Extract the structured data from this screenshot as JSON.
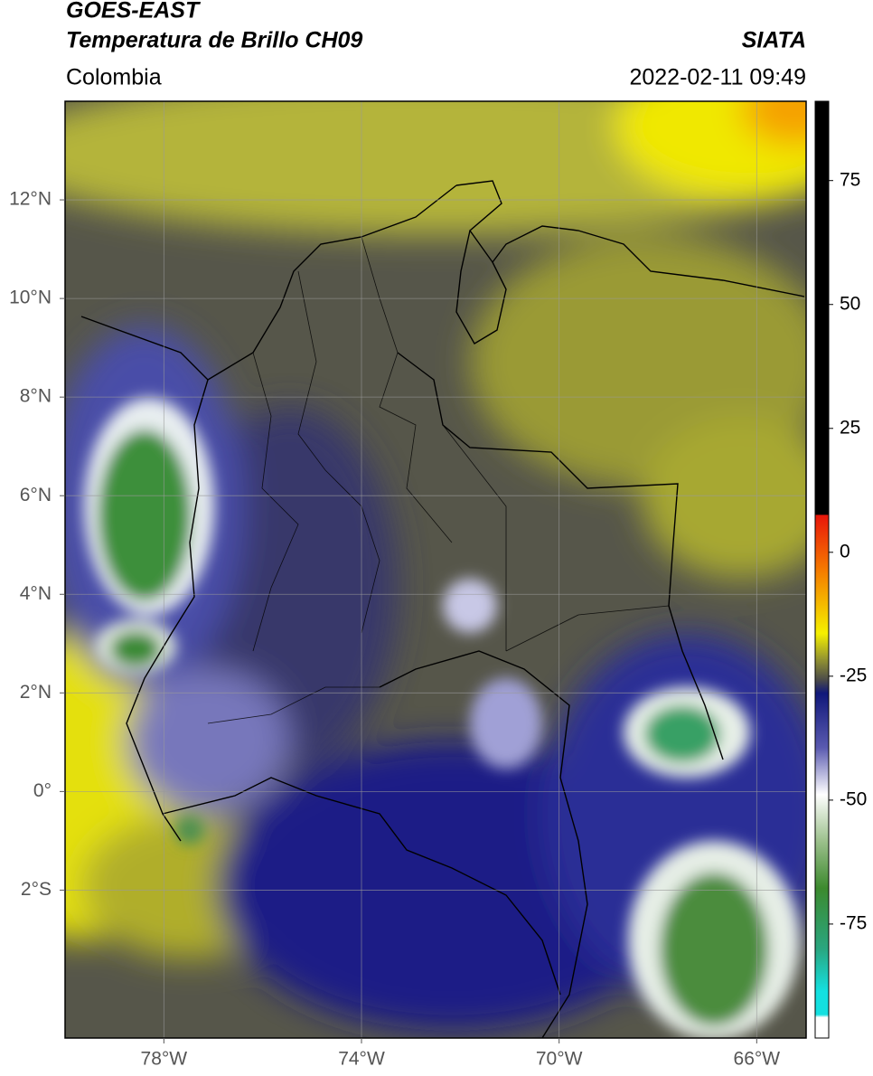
{
  "header": {
    "title_line1": "GOES-EAST",
    "title_line2": "Temperatura de Brillo CH09",
    "source": "SIATA",
    "region": "Colombia",
    "datetime": "2022-02-11 09:49"
  },
  "map": {
    "xlim": [
      -80,
      -65
    ],
    "ylim": [
      -5,
      14
    ],
    "xticks": [
      {
        "value": -78,
        "label": "78°W"
      },
      {
        "value": -74,
        "label": "74°W"
      },
      {
        "value": -70,
        "label": "70°W"
      },
      {
        "value": -66,
        "label": "66°W"
      }
    ],
    "yticks": [
      {
        "value": -2,
        "label": "2°S"
      },
      {
        "value": 0,
        "label": "0°"
      },
      {
        "value": 2,
        "label": "2°N"
      },
      {
        "value": 4,
        "label": "4°N"
      },
      {
        "value": 6,
        "label": "6°N"
      },
      {
        "value": 8,
        "label": "8°N"
      },
      {
        "value": 10,
        "label": "10°N"
      },
      {
        "value": 12,
        "label": "12°N"
      }
    ],
    "grid": true
  },
  "colorbar": {
    "lim": [
      -98,
      91
    ],
    "ticks": [
      -75,
      -50,
      -25,
      0,
      25,
      50,
      75
    ]
  }
}
